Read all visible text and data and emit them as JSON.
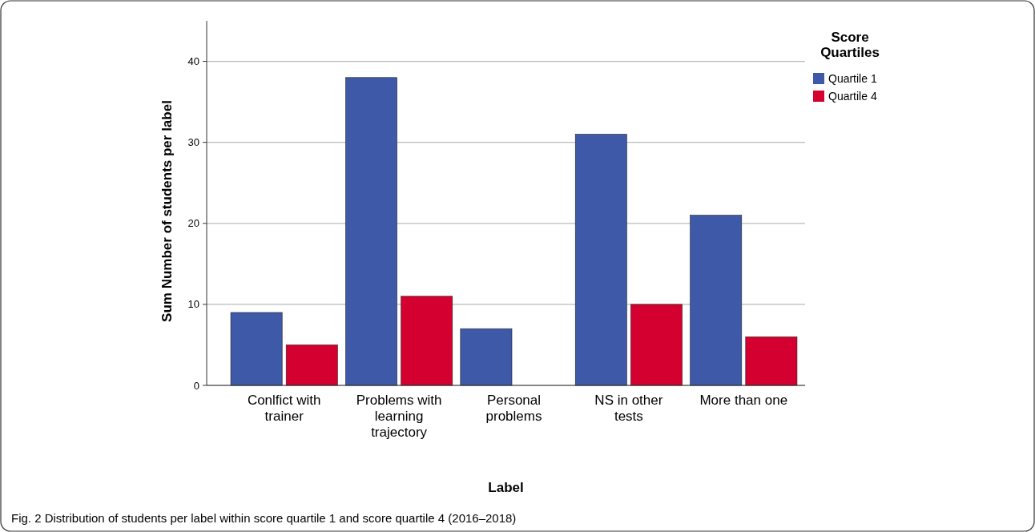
{
  "chart_data": {
    "type": "bar",
    "xlabel": "Label",
    "ylabel": "Sum  Number of students per label",
    "legend_title": "Score Quartiles",
    "categories": [
      "Conlfict with trainer",
      "Problems with learning trajectory",
      "Personal problems",
      "NS in other tests",
      "More than one"
    ],
    "series": [
      {
        "name": "Quartile 1",
        "color": "#3e59a8",
        "values": [
          9,
          38,
          7,
          31,
          21
        ]
      },
      {
        "name": "Quartile 4",
        "color": "#d4002f",
        "values": [
          5,
          11,
          0,
          10,
          6
        ]
      }
    ],
    "ylim": [
      0,
      45
    ],
    "yticks": [
      0,
      10,
      20,
      30,
      40
    ],
    "grid": "y",
    "legend": "top right",
    "annotations": [
      "Fig. 2 Distribution of students per label within score quartile 1 and score quartile 4 (2016–2018)"
    ]
  }
}
